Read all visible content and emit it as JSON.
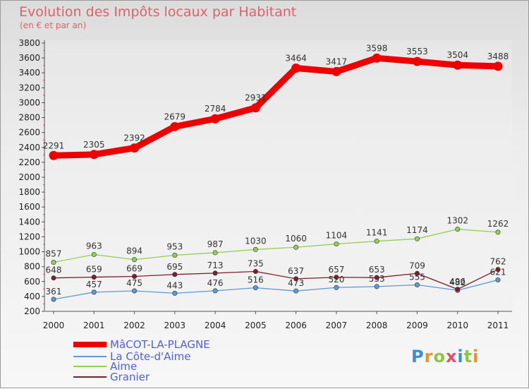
{
  "title": "Evolution des Impôts locaux par Habitant",
  "subtitle": "(en € et par an)",
  "logo": "Proxiti",
  "chart_data": {
    "type": "line",
    "title": "Evolution des Impôts locaux par Habitant",
    "subtitle": "(en € et par an)",
    "xlabel": "",
    "ylabel": "",
    "ylim": [
      200,
      3800
    ],
    "yticks": [
      200,
      400,
      600,
      800,
      1000,
      1200,
      1400,
      1600,
      1800,
      2000,
      2200,
      2400,
      2600,
      2800,
      3000,
      3200,
      3400,
      3600,
      3800
    ],
    "categories": [
      "2000",
      "2001",
      "2002",
      "2003",
      "2004",
      "2005",
      "2006",
      "2007",
      "2008",
      "2009",
      "2010",
      "2011"
    ],
    "grid": false,
    "legend_position": "bottom-left",
    "series": [
      {
        "name": "MâCOT-LA-PLAGNE",
        "color": "#ee0000",
        "values": [
          2291,
          2305,
          2392,
          2679,
          2784,
          2931,
          3464,
          3417,
          3598,
          3553,
          3504,
          3488
        ]
      },
      {
        "name": "La Côte-d'Aime",
        "color": "#5b9bd5",
        "values": [
          361,
          457,
          475,
          443,
          476,
          516,
          473,
          520,
          533,
          555,
          482,
          621
        ]
      },
      {
        "name": "Aime",
        "color": "#92d050",
        "values": [
          857,
          963,
          894,
          953,
          987,
          1030,
          1060,
          1104,
          1141,
          1174,
          1302,
          1262
        ]
      },
      {
        "name": "Granier",
        "color": "#7b1f2a",
        "values": [
          648,
          659,
          669,
          695,
          713,
          735,
          637,
          657,
          653,
          709,
          496,
          762
        ]
      }
    ]
  }
}
